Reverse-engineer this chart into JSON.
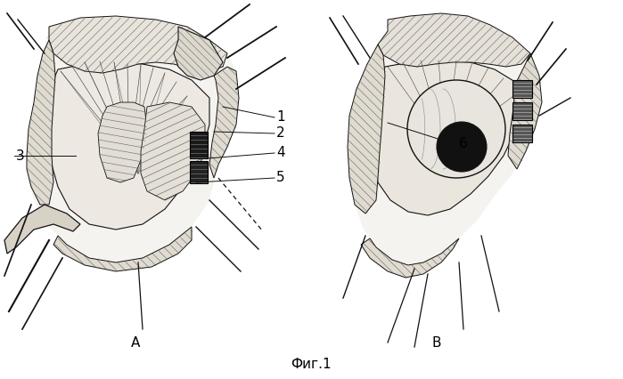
{
  "fig_label": "Фиг.1",
  "label_A": "А",
  "label_B": "В",
  "bg_color": "#ffffff",
  "label_fontsize": 11,
  "fig_label_fontsize": 11,
  "number_fontsize": 11,
  "lc": "#111111",
  "lw_main": 1.0,
  "lw_thin": 0.5
}
